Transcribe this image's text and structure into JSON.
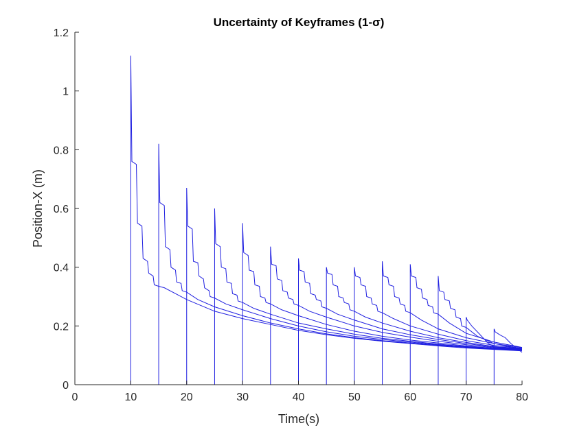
{
  "chart_data": {
    "type": "line",
    "title": "Uncertainty of Keyframes (1-σ)",
    "xlabel": "Time(s)",
    "ylabel": "Position-X (m)",
    "xlim": [
      0,
      80
    ],
    "ylim": [
      0,
      1.2
    ],
    "xticks": [
      0,
      10,
      20,
      30,
      40,
      50,
      60,
      70,
      80
    ],
    "yticks": [
      0,
      0.2,
      0.4,
      0.6,
      0.8,
      1,
      1.2
    ],
    "ytick_labels": [
      "0",
      "0.2",
      "0.4",
      "0.6",
      "0.8",
      "1",
      "1.2"
    ],
    "grid": false,
    "color": "#1f1fe0",
    "series": [
      {
        "start": 10,
        "peak": 1.12,
        "points": [
          [
            10.2,
            0.76
          ],
          [
            11,
            0.75
          ],
          [
            11.2,
            0.55
          ],
          [
            12,
            0.54
          ],
          [
            12.2,
            0.43
          ],
          [
            13,
            0.42
          ],
          [
            13.2,
            0.38
          ],
          [
            14,
            0.37
          ],
          [
            14.2,
            0.34
          ],
          [
            15,
            0.335
          ],
          [
            16,
            0.33
          ],
          [
            18,
            0.31
          ],
          [
            20,
            0.29
          ],
          [
            25,
            0.25
          ],
          [
            30,
            0.225
          ],
          [
            35,
            0.205
          ],
          [
            40,
            0.185
          ],
          [
            45,
            0.17
          ],
          [
            50,
            0.158
          ],
          [
            55,
            0.148
          ],
          [
            60,
            0.14
          ],
          [
            65,
            0.132
          ],
          [
            70,
            0.125
          ],
          [
            75,
            0.12
          ],
          [
            80,
            0.115
          ]
        ]
      },
      {
        "start": 15,
        "peak": 0.82,
        "points": [
          [
            15.2,
            0.62
          ],
          [
            16,
            0.61
          ],
          [
            16.2,
            0.47
          ],
          [
            17,
            0.46
          ],
          [
            17.2,
            0.4
          ],
          [
            18,
            0.39
          ],
          [
            18.2,
            0.35
          ],
          [
            19,
            0.345
          ],
          [
            19.2,
            0.32
          ],
          [
            20,
            0.315
          ],
          [
            22,
            0.29
          ],
          [
            25,
            0.265
          ],
          [
            30,
            0.235
          ],
          [
            35,
            0.21
          ],
          [
            40,
            0.19
          ],
          [
            45,
            0.173
          ],
          [
            50,
            0.16
          ],
          [
            55,
            0.15
          ],
          [
            60,
            0.142
          ],
          [
            65,
            0.134
          ],
          [
            70,
            0.127
          ],
          [
            75,
            0.121
          ],
          [
            80,
            0.117
          ]
        ]
      },
      {
        "start": 20,
        "peak": 0.67,
        "points": [
          [
            20.2,
            0.54
          ],
          [
            21,
            0.53
          ],
          [
            21.2,
            0.42
          ],
          [
            22,
            0.415
          ],
          [
            22.2,
            0.37
          ],
          [
            23,
            0.36
          ],
          [
            23.2,
            0.33
          ],
          [
            24,
            0.32
          ],
          [
            24.2,
            0.3
          ],
          [
            25,
            0.295
          ],
          [
            27,
            0.275
          ],
          [
            30,
            0.255
          ],
          [
            35,
            0.225
          ],
          [
            40,
            0.2
          ],
          [
            45,
            0.18
          ],
          [
            50,
            0.165
          ],
          [
            55,
            0.154
          ],
          [
            60,
            0.145
          ],
          [
            65,
            0.136
          ],
          [
            70,
            0.128
          ],
          [
            75,
            0.122
          ],
          [
            80,
            0.118
          ]
        ]
      },
      {
        "start": 25,
        "peak": 0.6,
        "points": [
          [
            25.2,
            0.48
          ],
          [
            26,
            0.47
          ],
          [
            26.2,
            0.4
          ],
          [
            27,
            0.395
          ],
          [
            27.2,
            0.35
          ],
          [
            28,
            0.345
          ],
          [
            28.2,
            0.31
          ],
          [
            29,
            0.305
          ],
          [
            29.2,
            0.285
          ],
          [
            30,
            0.28
          ],
          [
            32,
            0.26
          ],
          [
            35,
            0.24
          ],
          [
            40,
            0.21
          ],
          [
            45,
            0.19
          ],
          [
            50,
            0.172
          ],
          [
            55,
            0.158
          ],
          [
            60,
            0.148
          ],
          [
            65,
            0.138
          ],
          [
            70,
            0.13
          ],
          [
            75,
            0.123
          ],
          [
            80,
            0.119
          ]
        ]
      },
      {
        "start": 30,
        "peak": 0.55,
        "points": [
          [
            30.2,
            0.45
          ],
          [
            31,
            0.44
          ],
          [
            31.2,
            0.39
          ],
          [
            32,
            0.385
          ],
          [
            32.2,
            0.34
          ],
          [
            33,
            0.335
          ],
          [
            33.2,
            0.3
          ],
          [
            34,
            0.295
          ],
          [
            34.2,
            0.28
          ],
          [
            35,
            0.275
          ],
          [
            37,
            0.255
          ],
          [
            40,
            0.235
          ],
          [
            45,
            0.205
          ],
          [
            50,
            0.182
          ],
          [
            55,
            0.165
          ],
          [
            60,
            0.152
          ],
          [
            65,
            0.142
          ],
          [
            70,
            0.132
          ],
          [
            75,
            0.124
          ],
          [
            80,
            0.12
          ]
        ]
      },
      {
        "start": 35,
        "peak": 0.47,
        "points": [
          [
            35.2,
            0.41
          ],
          [
            36,
            0.405
          ],
          [
            36.2,
            0.36
          ],
          [
            37,
            0.355
          ],
          [
            37.2,
            0.32
          ],
          [
            38,
            0.315
          ],
          [
            38.2,
            0.295
          ],
          [
            39,
            0.29
          ],
          [
            39.2,
            0.275
          ],
          [
            40,
            0.27
          ],
          [
            42,
            0.25
          ],
          [
            45,
            0.23
          ],
          [
            50,
            0.2
          ],
          [
            55,
            0.178
          ],
          [
            60,
            0.162
          ],
          [
            65,
            0.148
          ],
          [
            70,
            0.136
          ],
          [
            75,
            0.126
          ],
          [
            80,
            0.121
          ]
        ]
      },
      {
        "start": 40,
        "peak": 0.43,
        "points": [
          [
            40.2,
            0.39
          ],
          [
            41,
            0.385
          ],
          [
            41.2,
            0.35
          ],
          [
            42,
            0.345
          ],
          [
            42.2,
            0.31
          ],
          [
            43,
            0.305
          ],
          [
            43.2,
            0.29
          ],
          [
            44,
            0.285
          ],
          [
            44.2,
            0.265
          ],
          [
            45,
            0.26
          ],
          [
            47,
            0.24
          ],
          [
            50,
            0.22
          ],
          [
            55,
            0.19
          ],
          [
            60,
            0.17
          ],
          [
            65,
            0.154
          ],
          [
            70,
            0.14
          ],
          [
            75,
            0.128
          ],
          [
            80,
            0.122
          ]
        ]
      },
      {
        "start": 45,
        "peak": 0.4,
        "points": [
          [
            45.2,
            0.38
          ],
          [
            46,
            0.375
          ],
          [
            46.2,
            0.34
          ],
          [
            47,
            0.335
          ],
          [
            47.2,
            0.3
          ],
          [
            48,
            0.295
          ],
          [
            48.2,
            0.28
          ],
          [
            49,
            0.275
          ],
          [
            49.2,
            0.255
          ],
          [
            50,
            0.25
          ],
          [
            52,
            0.23
          ],
          [
            55,
            0.21
          ],
          [
            60,
            0.182
          ],
          [
            65,
            0.16
          ],
          [
            70,
            0.144
          ],
          [
            75,
            0.13
          ],
          [
            80,
            0.123
          ]
        ]
      },
      {
        "start": 50,
        "peak": 0.4,
        "points": [
          [
            50.2,
            0.37
          ],
          [
            51,
            0.365
          ],
          [
            51.2,
            0.34
          ],
          [
            52,
            0.335
          ],
          [
            52.2,
            0.3
          ],
          [
            53,
            0.295
          ],
          [
            53.2,
            0.275
          ],
          [
            54,
            0.27
          ],
          [
            54.2,
            0.25
          ],
          [
            55,
            0.245
          ],
          [
            57,
            0.225
          ],
          [
            60,
            0.2
          ],
          [
            65,
            0.172
          ],
          [
            70,
            0.15
          ],
          [
            75,
            0.134
          ],
          [
            80,
            0.124
          ]
        ]
      },
      {
        "start": 55,
        "peak": 0.42,
        "points": [
          [
            55.2,
            0.37
          ],
          [
            56,
            0.365
          ],
          [
            56.2,
            0.34
          ],
          [
            57,
            0.335
          ],
          [
            57.2,
            0.3
          ],
          [
            58,
            0.295
          ],
          [
            58.2,
            0.275
          ],
          [
            59,
            0.27
          ],
          [
            59.2,
            0.25
          ],
          [
            60,
            0.245
          ],
          [
            62,
            0.22
          ],
          [
            65,
            0.19
          ],
          [
            70,
            0.16
          ],
          [
            75,
            0.14
          ],
          [
            80,
            0.126
          ]
        ]
      },
      {
        "start": 60,
        "peak": 0.41,
        "points": [
          [
            60.2,
            0.37
          ],
          [
            61,
            0.365
          ],
          [
            61.2,
            0.33
          ],
          [
            62,
            0.325
          ],
          [
            62.2,
            0.295
          ],
          [
            63,
            0.29
          ],
          [
            63.2,
            0.27
          ],
          [
            64,
            0.265
          ],
          [
            64.2,
            0.245
          ],
          [
            65,
            0.24
          ],
          [
            67,
            0.21
          ],
          [
            70,
            0.175
          ],
          [
            75,
            0.145
          ],
          [
            80,
            0.127
          ]
        ]
      },
      {
        "start": 65,
        "peak": 0.37,
        "points": [
          [
            65.2,
            0.32
          ],
          [
            66,
            0.315
          ],
          [
            66.2,
            0.29
          ],
          [
            67,
            0.285
          ],
          [
            67.2,
            0.26
          ],
          [
            68,
            0.255
          ],
          [
            68.2,
            0.23
          ],
          [
            69,
            0.225
          ],
          [
            69.2,
            0.2
          ],
          [
            70,
            0.195
          ],
          [
            72,
            0.165
          ],
          [
            75,
            0.14
          ],
          [
            80,
            0.122
          ]
        ]
      },
      {
        "start": 70,
        "peak": 0.23,
        "points": [
          [
            70.2,
            0.22
          ],
          [
            71,
            0.2
          ],
          [
            72,
            0.18
          ],
          [
            73,
            0.16
          ],
          [
            74,
            0.14
          ],
          [
            75,
            0.13
          ],
          [
            77,
            0.125
          ],
          [
            80,
            0.12
          ]
        ]
      },
      {
        "start": 75,
        "peak": 0.19,
        "points": [
          [
            75.2,
            0.18
          ],
          [
            76,
            0.17
          ],
          [
            77,
            0.16
          ],
          [
            78,
            0.14
          ],
          [
            79,
            0.125
          ],
          [
            80,
            0.11
          ]
        ]
      }
    ]
  }
}
